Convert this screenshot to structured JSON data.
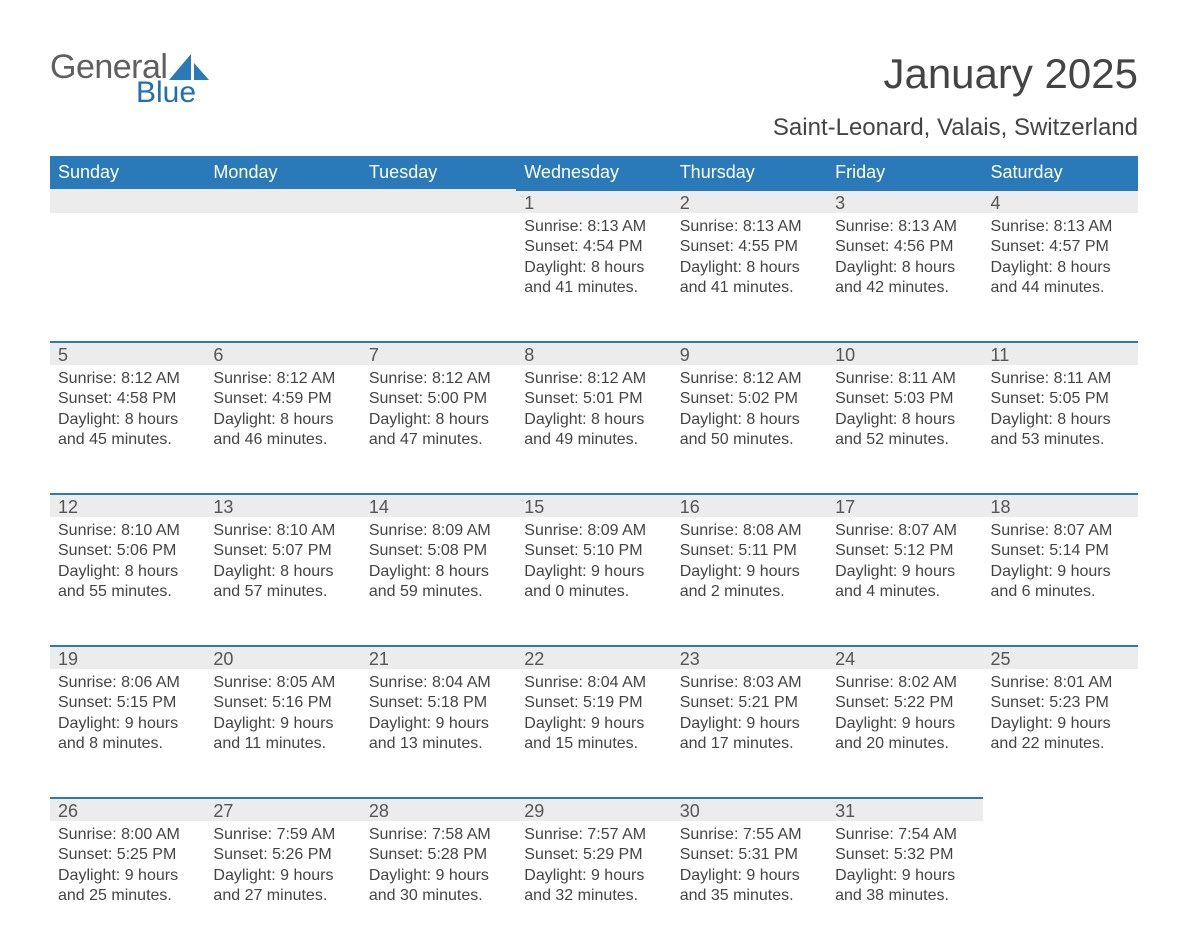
{
  "brand": {
    "word1": "General",
    "word2": "Blue",
    "word1_color": "#5f5f5f",
    "word2_color": "#1f6fb3"
  },
  "title": "January 2025",
  "location": "Saint-Leonard, Valais, Switzerland",
  "header_bg": "#2a7ab9",
  "header_fg": "#ffffff",
  "daynum_bg": "#ececec",
  "daynum_border": "#2a7ab9",
  "text_color": "#444444",
  "columns": [
    "Sunday",
    "Monday",
    "Tuesday",
    "Wednesday",
    "Thursday",
    "Friday",
    "Saturday"
  ],
  "weeks": [
    [
      null,
      null,
      null,
      {
        "n": "1",
        "sunrise": "8:13 AM",
        "sunset": "4:54 PM",
        "dl1": "8 hours",
        "dl2": "41 minutes."
      },
      {
        "n": "2",
        "sunrise": "8:13 AM",
        "sunset": "4:55 PM",
        "dl1": "8 hours",
        "dl2": "41 minutes."
      },
      {
        "n": "3",
        "sunrise": "8:13 AM",
        "sunset": "4:56 PM",
        "dl1": "8 hours",
        "dl2": "42 minutes."
      },
      {
        "n": "4",
        "sunrise": "8:13 AM",
        "sunset": "4:57 PM",
        "dl1": "8 hours",
        "dl2": "44 minutes."
      }
    ],
    [
      {
        "n": "5",
        "sunrise": "8:12 AM",
        "sunset": "4:58 PM",
        "dl1": "8 hours",
        "dl2": "45 minutes."
      },
      {
        "n": "6",
        "sunrise": "8:12 AM",
        "sunset": "4:59 PM",
        "dl1": "8 hours",
        "dl2": "46 minutes."
      },
      {
        "n": "7",
        "sunrise": "8:12 AM",
        "sunset": "5:00 PM",
        "dl1": "8 hours",
        "dl2": "47 minutes."
      },
      {
        "n": "8",
        "sunrise": "8:12 AM",
        "sunset": "5:01 PM",
        "dl1": "8 hours",
        "dl2": "49 minutes."
      },
      {
        "n": "9",
        "sunrise": "8:12 AM",
        "sunset": "5:02 PM",
        "dl1": "8 hours",
        "dl2": "50 minutes."
      },
      {
        "n": "10",
        "sunrise": "8:11 AM",
        "sunset": "5:03 PM",
        "dl1": "8 hours",
        "dl2": "52 minutes."
      },
      {
        "n": "11",
        "sunrise": "8:11 AM",
        "sunset": "5:05 PM",
        "dl1": "8 hours",
        "dl2": "53 minutes."
      }
    ],
    [
      {
        "n": "12",
        "sunrise": "8:10 AM",
        "sunset": "5:06 PM",
        "dl1": "8 hours",
        "dl2": "55 minutes."
      },
      {
        "n": "13",
        "sunrise": "8:10 AM",
        "sunset": "5:07 PM",
        "dl1": "8 hours",
        "dl2": "57 minutes."
      },
      {
        "n": "14",
        "sunrise": "8:09 AM",
        "sunset": "5:08 PM",
        "dl1": "8 hours",
        "dl2": "59 minutes."
      },
      {
        "n": "15",
        "sunrise": "8:09 AM",
        "sunset": "5:10 PM",
        "dl1": "9 hours",
        "dl2": "0 minutes."
      },
      {
        "n": "16",
        "sunrise": "8:08 AM",
        "sunset": "5:11 PM",
        "dl1": "9 hours",
        "dl2": "2 minutes."
      },
      {
        "n": "17",
        "sunrise": "8:07 AM",
        "sunset": "5:12 PM",
        "dl1": "9 hours",
        "dl2": "4 minutes."
      },
      {
        "n": "18",
        "sunrise": "8:07 AM",
        "sunset": "5:14 PM",
        "dl1": "9 hours",
        "dl2": "6 minutes."
      }
    ],
    [
      {
        "n": "19",
        "sunrise": "8:06 AM",
        "sunset": "5:15 PM",
        "dl1": "9 hours",
        "dl2": "8 minutes."
      },
      {
        "n": "20",
        "sunrise": "8:05 AM",
        "sunset": "5:16 PM",
        "dl1": "9 hours",
        "dl2": "11 minutes."
      },
      {
        "n": "21",
        "sunrise": "8:04 AM",
        "sunset": "5:18 PM",
        "dl1": "9 hours",
        "dl2": "13 minutes."
      },
      {
        "n": "22",
        "sunrise": "8:04 AM",
        "sunset": "5:19 PM",
        "dl1": "9 hours",
        "dl2": "15 minutes."
      },
      {
        "n": "23",
        "sunrise": "8:03 AM",
        "sunset": "5:21 PM",
        "dl1": "9 hours",
        "dl2": "17 minutes."
      },
      {
        "n": "24",
        "sunrise": "8:02 AM",
        "sunset": "5:22 PM",
        "dl1": "9 hours",
        "dl2": "20 minutes."
      },
      {
        "n": "25",
        "sunrise": "8:01 AM",
        "sunset": "5:23 PM",
        "dl1": "9 hours",
        "dl2": "22 minutes."
      }
    ],
    [
      {
        "n": "26",
        "sunrise": "8:00 AM",
        "sunset": "5:25 PM",
        "dl1": "9 hours",
        "dl2": "25 minutes."
      },
      {
        "n": "27",
        "sunrise": "7:59 AM",
        "sunset": "5:26 PM",
        "dl1": "9 hours",
        "dl2": "27 minutes."
      },
      {
        "n": "28",
        "sunrise": "7:58 AM",
        "sunset": "5:28 PM",
        "dl1": "9 hours",
        "dl2": "30 minutes."
      },
      {
        "n": "29",
        "sunrise": "7:57 AM",
        "sunset": "5:29 PM",
        "dl1": "9 hours",
        "dl2": "32 minutes."
      },
      {
        "n": "30",
        "sunrise": "7:55 AM",
        "sunset": "5:31 PM",
        "dl1": "9 hours",
        "dl2": "35 minutes."
      },
      {
        "n": "31",
        "sunrise": "7:54 AM",
        "sunset": "5:32 PM",
        "dl1": "9 hours",
        "dl2": "38 minutes."
      },
      null
    ]
  ],
  "labels": {
    "sunrise": "Sunrise: ",
    "sunset": "Sunset: ",
    "daylight": "Daylight: ",
    "and": "and "
  }
}
